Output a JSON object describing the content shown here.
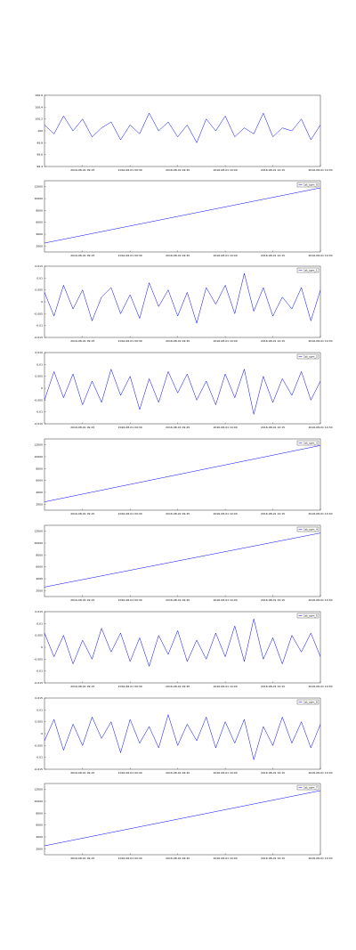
{
  "chart_data": [
    {
      "type": "line",
      "ylim": [
        99.4,
        100.6
      ],
      "yticks": [
        99.4,
        99.6,
        99.8,
        100,
        100.2,
        100.4,
        100.6
      ],
      "xlim": [
        0,
        29
      ],
      "xticks": [
        {
          "value": 4,
          "label": "2016-08-01 09:15"
        },
        {
          "value": 9,
          "label": "2016-08-01 09:30"
        },
        {
          "value": 14,
          "label": "2016-08-01 09:45"
        },
        {
          "value": 19,
          "label": "2016-08-01 10:00"
        },
        {
          "value": 24,
          "label": "2016-08-01 10:15"
        },
        {
          "value": 29,
          "label": "2016-08-01 10:30"
        }
      ],
      "series": [
        {
          "color": "#0000ff",
          "values": [
            100.1,
            99.95,
            100.25,
            100.0,
            100.2,
            99.9,
            100.05,
            100.15,
            99.85,
            100.1,
            99.95,
            100.3,
            100.0,
            100.15,
            99.9,
            100.1,
            99.8,
            100.2,
            100.0,
            100.25,
            99.9,
            100.05,
            99.95,
            100.3,
            99.9,
            100.05,
            100.0,
            100.2,
            99.85,
            100.1
          ]
        }
      ]
    },
    {
      "type": "line",
      "ylim": [
        1000,
        13000
      ],
      "yticks": [
        2000,
        4000,
        6000,
        8000,
        10000,
        12000
      ],
      "xlim": [
        0,
        29
      ],
      "legend": "upper right",
      "xticks": [
        {
          "value": 4,
          "label": "2016-08-01 09:15"
        },
        {
          "value": 9,
          "label": "2016-08-01 09:30"
        },
        {
          "value": 14,
          "label": "2016-08-01 09:45"
        },
        {
          "value": 19,
          "label": "2016-08-01 10:00"
        },
        {
          "value": 24,
          "label": "2016-08-01 10:15"
        },
        {
          "value": 29,
          "label": "2016-08-01 10:30"
        }
      ],
      "series": [
        {
          "name": "1st_sym_0",
          "color": "#0000ff",
          "x": [
            0,
            29
          ],
          "values": [
            2500,
            11800
          ]
        }
      ]
    },
    {
      "type": "line",
      "ylim": [
        -0.015,
        0.015
      ],
      "yticks": [
        -0.015,
        -0.01,
        -0.005,
        0,
        0.005,
        0.01,
        0.015
      ],
      "xlim": [
        0,
        29
      ],
      "legend": "upper right",
      "xticks": [
        {
          "value": 4,
          "label": "2016-08-01 09:15"
        },
        {
          "value": 9,
          "label": "2016-08-01 09:30"
        },
        {
          "value": 14,
          "label": "2016-08-01 09:45"
        },
        {
          "value": 19,
          "label": "2016-08-01 10:00"
        },
        {
          "value": 24,
          "label": "2016-08-01 10:15"
        },
        {
          "value": 29,
          "label": "2016-08-01 10:30"
        }
      ],
      "series": [
        {
          "name": "1st_sym_1",
          "color": "#0000ff",
          "values": [
            0.004,
            -0.006,
            0.007,
            -0.003,
            0.005,
            -0.008,
            0.002,
            0.006,
            -0.005,
            0.003,
            -0.007,
            0.008,
            -0.002,
            0.005,
            -0.006,
            0.004,
            -0.009,
            0.006,
            -0.001,
            0.007,
            -0.005,
            0.012,
            -0.004,
            0.006,
            -0.006,
            0.002,
            -0.003,
            0.006,
            -0.008,
            0.005
          ]
        }
      ]
    },
    {
      "type": "line",
      "ylim": [
        -0.015,
        0.015
      ],
      "yticks": [
        -0.015,
        -0.01,
        -0.005,
        0,
        0.005,
        0.01,
        0.015
      ],
      "xlim": [
        0,
        29
      ],
      "legend": "upper right",
      "xticks": [
        {
          "value": 4,
          "label": "2016-08-01 09:15"
        },
        {
          "value": 9,
          "label": "2016-08-01 09:30"
        },
        {
          "value": 14,
          "label": "2016-08-01 09:45"
        },
        {
          "value": 19,
          "label": "2016-08-01 10:00"
        },
        {
          "value": 24,
          "label": "2016-08-01 10:15"
        },
        {
          "value": 29,
          "label": "2016-08-01 10:30"
        }
      ],
      "series": [
        {
          "name": "1st_sym_2",
          "color": "#0000ff",
          "values": [
            -0.005,
            0.007,
            -0.004,
            0.006,
            -0.007,
            0.003,
            -0.006,
            0.008,
            -0.003,
            0.005,
            -0.009,
            0.004,
            -0.006,
            0.007,
            -0.002,
            0.006,
            -0.005,
            0.003,
            -0.007,
            0.006,
            -0.004,
            0.008,
            -0.011,
            0.005,
            -0.006,
            0.004,
            -0.003,
            0.007,
            -0.005,
            0.003
          ]
        }
      ]
    },
    {
      "type": "line",
      "ylim": [
        1000,
        13000
      ],
      "yticks": [
        2000,
        4000,
        6000,
        8000,
        10000,
        12000
      ],
      "xlim": [
        0,
        29
      ],
      "legend": "upper right",
      "xticks": [
        {
          "value": 4,
          "label": "2016-08-01 09:15"
        },
        {
          "value": 9,
          "label": "2016-08-01 09:30"
        },
        {
          "value": 14,
          "label": "2016-08-01 09:45"
        },
        {
          "value": 19,
          "label": "2016-08-01 10:00"
        },
        {
          "value": 24,
          "label": "2016-08-01 10:15"
        },
        {
          "value": 29,
          "label": "2016-08-01 10:30"
        }
      ],
      "series": [
        {
          "name": "1st_sym_3",
          "color": "#0000ff",
          "x": [
            0,
            29
          ],
          "values": [
            2400,
            11900
          ]
        }
      ]
    },
    {
      "type": "line",
      "ylim": [
        1000,
        13000
      ],
      "yticks": [
        2000,
        4000,
        6000,
        8000,
        10000,
        12000
      ],
      "xlim": [
        0,
        29
      ],
      "legend": "upper right",
      "xticks": [
        {
          "value": 4,
          "label": "2016-08-01 09:15"
        },
        {
          "value": 9,
          "label": "2016-08-01 09:30"
        },
        {
          "value": 14,
          "label": "2016-08-01 09:45"
        },
        {
          "value": 19,
          "label": "2016-08-01 10:00"
        },
        {
          "value": 24,
          "label": "2016-08-01 10:15"
        },
        {
          "value": 29,
          "label": "2016-08-01 10:30"
        }
      ],
      "series": [
        {
          "name": "1st_sym_4",
          "color": "#0000ff",
          "x": [
            0,
            29
          ],
          "values": [
            2600,
            11700
          ]
        }
      ]
    },
    {
      "type": "line",
      "ylim": [
        -0.015,
        0.015
      ],
      "yticks": [
        -0.015,
        -0.01,
        -0.005,
        0,
        0.005,
        0.01,
        0.015
      ],
      "xlim": [
        0,
        29
      ],
      "legend": "upper right",
      "xticks": [
        {
          "value": 4,
          "label": "2016-08-01 09:15"
        },
        {
          "value": 9,
          "label": "2016-08-01 09:30"
        },
        {
          "value": 14,
          "label": "2016-08-01 09:45"
        },
        {
          "value": 19,
          "label": "2016-08-01 10:00"
        },
        {
          "value": 24,
          "label": "2016-08-01 10:15"
        },
        {
          "value": 29,
          "label": "2016-08-01 10:30"
        }
      ],
      "series": [
        {
          "name": "1st_sym_5",
          "color": "#0000ff",
          "values": [
            0.006,
            -0.004,
            0.005,
            -0.007,
            0.003,
            -0.005,
            0.008,
            -0.002,
            0.006,
            -0.006,
            0.004,
            -0.008,
            0.005,
            -0.003,
            0.007,
            -0.006,
            0.003,
            -0.005,
            0.006,
            -0.004,
            0.009,
            -0.006,
            0.012,
            -0.005,
            0.004,
            -0.007,
            0.005,
            -0.002,
            0.006,
            -0.004
          ]
        }
      ]
    },
    {
      "type": "line",
      "ylim": [
        -0.015,
        0.015
      ],
      "yticks": [
        -0.015,
        -0.01,
        -0.005,
        0,
        0.005,
        0.01,
        0.015
      ],
      "xlim": [
        0,
        29
      ],
      "legend": "upper right",
      "xticks": [
        {
          "value": 4,
          "label": "2016-08-01 09:15"
        },
        {
          "value": 9,
          "label": "2016-08-01 09:30"
        },
        {
          "value": 14,
          "label": "2016-08-01 09:45"
        },
        {
          "value": 19,
          "label": "2016-08-01 10:00"
        },
        {
          "value": 24,
          "label": "2016-08-01 10:15"
        },
        {
          "value": 29,
          "label": "2016-08-01 10:30"
        }
      ],
      "series": [
        {
          "name": "1st_sym_6",
          "color": "#0000ff",
          "values": [
            -0.003,
            0.006,
            -0.007,
            0.004,
            -0.005,
            0.007,
            -0.002,
            0.005,
            -0.008,
            0.006,
            -0.004,
            0.003,
            -0.006,
            0.008,
            -0.005,
            0.004,
            -0.003,
            0.007,
            -0.006,
            0.005,
            -0.004,
            0.006,
            -0.011,
            0.003,
            -0.005,
            0.007,
            -0.004,
            0.005,
            -0.006,
            0.004
          ]
        }
      ]
    },
    {
      "type": "line",
      "ylim": [
        1000,
        13000
      ],
      "yticks": [
        2000,
        4000,
        6000,
        8000,
        10000,
        12000
      ],
      "xlim": [
        0,
        29
      ],
      "legend": "upper right",
      "xticks": [
        {
          "value": 4,
          "label": "2016-08-01 09:15"
        },
        {
          "value": 9,
          "label": "2016-08-01 09:30"
        },
        {
          "value": 14,
          "label": "2016-08-01 09:45"
        },
        {
          "value": 19,
          "label": "2016-08-01 10:00"
        },
        {
          "value": 24,
          "label": "2016-08-01 10:15"
        },
        {
          "value": 29,
          "label": "2016-08-01 10:30"
        }
      ],
      "series": [
        {
          "name": "1st_sym_7",
          "color": "#0000ff",
          "x": [
            0,
            29
          ],
          "values": [
            2500,
            11800
          ]
        }
      ]
    }
  ]
}
